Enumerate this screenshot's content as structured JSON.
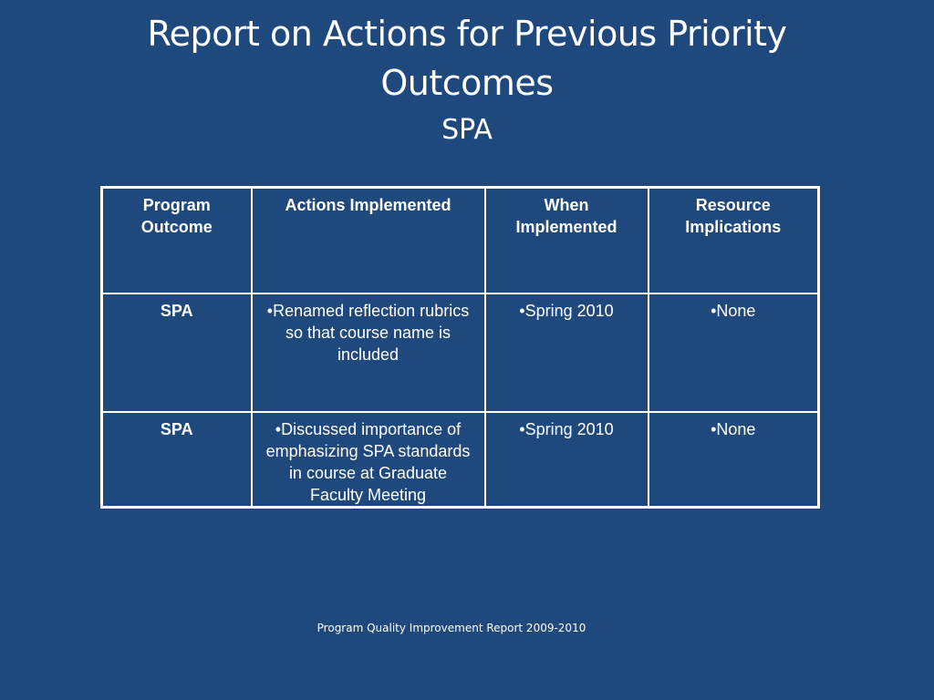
{
  "slide": {
    "title_line1": "Report on Actions for Previous Priority",
    "title_line2": "Outcomes",
    "subtitle": "SPA",
    "footer": "Program Quality Improvement Report  2009-2010"
  },
  "table": {
    "headers": [
      "Program Outcome",
      "Actions Implemented",
      "When Implemented",
      "Resource Implications"
    ],
    "rows": [
      [
        "SPA",
        "•Renamed reflection rubrics so that course name is included",
        "•Spring 2010",
        "•None"
      ],
      [
        "SPA",
        "•Discussed importance of emphasizing SPA standards in course at Graduate Faculty Meeting",
        "•Spring 2010",
        "•None"
      ]
    ]
  }
}
